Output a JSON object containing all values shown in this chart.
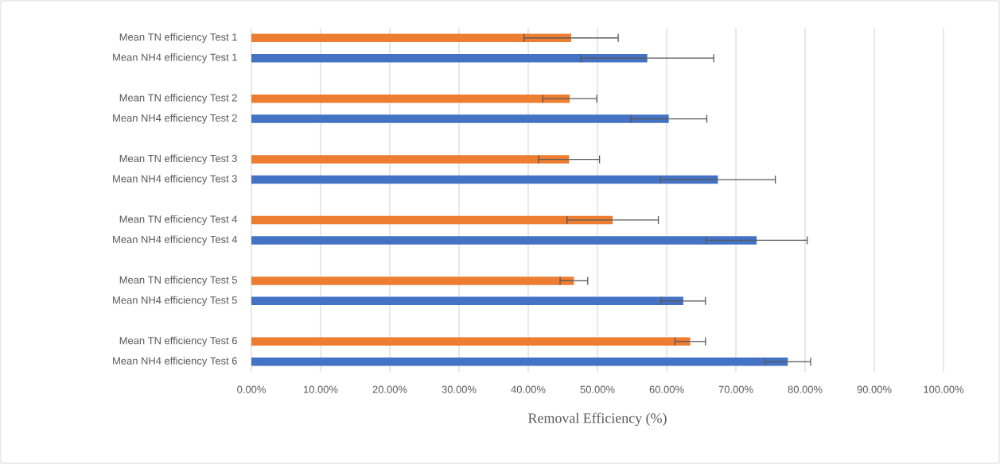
{
  "chart_data": {
    "type": "bar",
    "orientation": "horizontal",
    "xlabel": "Removal Efficiency (%)",
    "categories": [
      "Mean TN efficiency Test 1",
      "Mean NH4 efficiency Test 1",
      null,
      "Mean TN efficiency Test 2",
      "Mean NH4 efficiency Test 2",
      null,
      "Mean TN efficiency Test 3",
      "Mean NH4 efficiency Test 3",
      null,
      "Mean TN efficiency Test 4",
      "Mean NH4 efficiency Test 4",
      null,
      "Mean TN efficiency Test 5",
      "Mean NH4 efficiency Test 5",
      null,
      "Mean TN efficiency Test 6",
      "Mean NH4 efficiency Test 6"
    ],
    "series": [
      {
        "color": "#ed7d31",
        "values": [
          46.2,
          null,
          null,
          46.0,
          null,
          null,
          45.9,
          null,
          null,
          52.2,
          null,
          null,
          46.6,
          null,
          null,
          63.4,
          null
        ],
        "errors": [
          6.8,
          null,
          null,
          3.9,
          null,
          null,
          4.4,
          null,
          null,
          6.6,
          null,
          null,
          2.0,
          null,
          null,
          2.2,
          null
        ]
      },
      {
        "color": "#4472c4",
        "values": [
          null,
          57.2,
          null,
          null,
          60.3,
          null,
          null,
          67.4,
          null,
          null,
          73.0,
          null,
          null,
          62.4,
          null,
          null,
          77.5
        ],
        "errors": [
          null,
          9.6,
          null,
          null,
          5.5,
          null,
          null,
          8.3,
          null,
          null,
          7.3,
          null,
          null,
          3.2,
          null,
          null,
          3.3
        ]
      }
    ],
    "xlim": [
      0,
      100
    ],
    "xticks": [
      {
        "value": 0,
        "label": "0.00%"
      },
      {
        "value": 10,
        "label": "10.00%"
      },
      {
        "value": 20,
        "label": "20.00%"
      },
      {
        "value": 30,
        "label": "30.00%"
      },
      {
        "value": 40,
        "label": "40.00%"
      },
      {
        "value": 50,
        "label": "50.00%"
      },
      {
        "value": 60,
        "label": "60.00%"
      },
      {
        "value": 70,
        "label": "70.00%"
      },
      {
        "value": 80,
        "label": "80.00%"
      },
      {
        "value": 90,
        "label": "90.00%"
      },
      {
        "value": 100,
        "label": "100.00%"
      }
    ],
    "grid": "x"
  }
}
